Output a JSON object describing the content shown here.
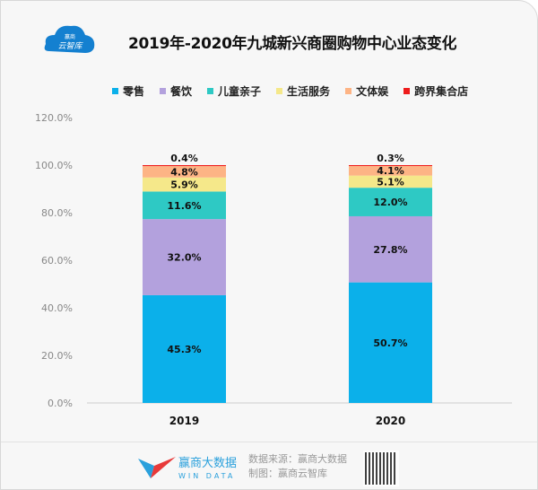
{
  "logo": {
    "line1": "赢商",
    "line2": "云智库"
  },
  "colors": {
    "retail": "#0bb0ea",
    "food": "#b3a1dd",
    "kids": "#2ec9c4",
    "life": "#f5e88a",
    "culture": "#fdb485",
    "cross": "#ee1c1c"
  },
  "chart_data": {
    "type": "bar",
    "stacked": true,
    "title": "2019年-2020年九城新兴商圈购物中心业态变化",
    "categories": [
      "2019",
      "2020"
    ],
    "series": [
      {
        "name": "零售",
        "color": "#0bb0ea",
        "values": [
          45.3,
          50.7
        ],
        "labels": [
          "45.3%",
          "50.7%"
        ]
      },
      {
        "name": "餐饮",
        "color": "#b3a1dd",
        "values": [
          32.0,
          27.8
        ],
        "labels": [
          "32.0%",
          "27.8%"
        ]
      },
      {
        "name": "儿童亲子",
        "color": "#2ec9c4",
        "values": [
          11.6,
          12.0
        ],
        "labels": [
          "11.6%",
          "12.0%"
        ]
      },
      {
        "name": "生活服务",
        "color": "#f5e88a",
        "values": [
          5.9,
          5.1
        ],
        "labels": [
          "5.9%",
          "5.1%"
        ]
      },
      {
        "name": "文体娱",
        "color": "#fdb485",
        "values": [
          4.8,
          4.1
        ],
        "labels": [
          "4.8%",
          "4.1%"
        ]
      },
      {
        "name": "跨界集合店",
        "color": "#ee1c1c",
        "values": [
          0.4,
          0.3
        ],
        "labels": [
          "0.4%",
          "0.3%"
        ]
      }
    ],
    "ylim": [
      0,
      120
    ],
    "yticks": [
      "0.0%",
      "20.0%",
      "40.0%",
      "60.0%",
      "80.0%",
      "100.0%",
      "120.0%"
    ],
    "xlabel": "",
    "ylabel": "",
    "legend": "top",
    "grid": false
  },
  "footer": {
    "brand_cn": "赢商大数据",
    "brand_en": "WIN DATA",
    "source": "数据来源：赢商大数据",
    "made_by": "制图：赢商云智库"
  }
}
